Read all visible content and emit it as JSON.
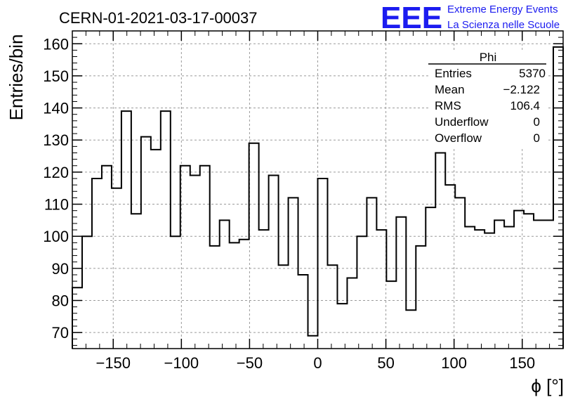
{
  "header": {
    "title": "CERN-01-2021-03-17-00037",
    "logo_mark": "EEE",
    "logo_line1": "Extreme Energy Events",
    "logo_line2": "La Scienza nelle Scuole"
  },
  "stats": {
    "name": "Phi",
    "rows": [
      {
        "label": "Entries",
        "value": "5370"
      },
      {
        "label": "Mean",
        "value": "−2.122"
      },
      {
        "label": "RMS",
        "value": "106.4"
      },
      {
        "label": "Underflow",
        "value": "0"
      },
      {
        "label": "Overflow",
        "value": "0"
      }
    ]
  },
  "colors": {
    "line": "#000000",
    "grid": "#9a9a9a",
    "logo": "#1c1cf0"
  },
  "chart_data": {
    "type": "histogram",
    "xlabel": "ϕ [°]",
    "ylabel": "Entries/bin",
    "xlim": [
      -180,
      180
    ],
    "ylim": [
      65,
      164
    ],
    "bin_width": 7.2,
    "grid": true,
    "xticks": [
      -150,
      -100,
      -50,
      0,
      50,
      100,
      150
    ],
    "yticks": [
      70,
      80,
      90,
      100,
      110,
      120,
      130,
      140,
      150,
      160
    ],
    "xtick_labels": [
      "−150",
      "−100",
      "−50",
      "0",
      "50",
      "100",
      "150"
    ],
    "ytick_labels": [
      "70",
      "80",
      "90",
      "100",
      "110",
      "120",
      "130",
      "140",
      "150",
      "160"
    ],
    "values": [
      84,
      100,
      118,
      122,
      115,
      139,
      107,
      131,
      127,
      139,
      100,
      122,
      119,
      122,
      97,
      105,
      98,
      99,
      129,
      102,
      119,
      91,
      112,
      88,
      69,
      118,
      91,
      79,
      87,
      100,
      112,
      102,
      86,
      106,
      77,
      97,
      109,
      126,
      116,
      112,
      103,
      102,
      101,
      105,
      103,
      108,
      107,
      105,
      105,
      159
    ]
  }
}
